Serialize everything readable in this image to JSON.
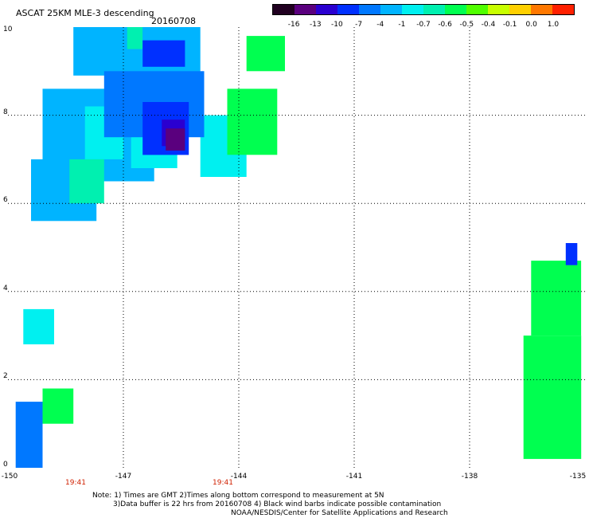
{
  "header": {
    "title": "ASCAT 25KM MLE-3 descending",
    "date": "20160708"
  },
  "colorbar": {
    "labels": [
      "-16",
      "-13",
      "-10",
      "-7",
      "-4",
      "-1",
      "-0.7",
      "-0.6",
      "-0.5",
      "-0.4",
      "-0.1",
      "0.0",
      "1.0"
    ],
    "colors": [
      "#200020",
      "#5a007e",
      "#2a00d0",
      "#0030ff",
      "#0078ff",
      "#00b4ff",
      "#00f0f0",
      "#00f0b0",
      "#00ff50",
      "#50ff00",
      "#c8ff00",
      "#ffd000",
      "#ff7800",
      "#ff2000"
    ]
  },
  "axes": {
    "y_ticks": [
      "0",
      "2",
      "4",
      "6",
      "8",
      "10"
    ],
    "x_ticks": [
      "-150",
      "-147",
      "-144",
      "-141",
      "-138",
      "-135"
    ],
    "time_labels": [
      "19:41",
      "19:41"
    ]
  },
  "notes": {
    "line1": "Note: 1) Times are GMT 2)Times along bottom correspond to measurement at 5N",
    "line2": "3)Data buffer is 22 hrs from 20160708 4) Black wind barbs indicate possible contamination",
    "line3": "NOAA/NESDIS/Center for Satellite Applications and Research"
  },
  "map_data": {
    "lon_range": [
      -150,
      -135
    ],
    "lat_range": [
      0,
      10
    ],
    "swaths": [
      {
        "category": "-1",
        "color": "#00b4ff",
        "cells": [
          [
            -148.3,
            8.9,
            -145.0,
            10.0
          ],
          [
            -149.1,
            6.5,
            -146.2,
            8.6
          ],
          [
            -149.4,
            5.6,
            -147.7,
            7.0
          ]
        ]
      },
      {
        "category": "-0.7",
        "color": "#00f0f0",
        "cells": [
          [
            -148.0,
            7.0,
            -147.0,
            8.2
          ],
          [
            -146.8,
            6.8,
            -145.6,
            7.8
          ],
          [
            -145.0,
            6.6,
            -143.8,
            8.0
          ],
          [
            -149.6,
            2.8,
            -148.8,
            3.6
          ]
        ]
      },
      {
        "category": "-4",
        "color": "#0078ff",
        "cells": [
          [
            -147.5,
            7.5,
            -144.9,
            9.0
          ],
          [
            -149.8,
            0.0,
            -149.1,
            1.5
          ]
        ]
      },
      {
        "category": "-0.6",
        "color": "#00f0b0",
        "cells": [
          [
            -148.4,
            6.0,
            -147.5,
            7.0
          ],
          [
            -146.9,
            9.5,
            -146.5,
            10.0
          ]
        ]
      },
      {
        "category": "-0.5",
        "color": "#00ff50",
        "cells": [
          [
            -143.8,
            9.0,
            -142.8,
            9.8
          ],
          [
            -144.3,
            7.1,
            -143.0,
            8.6
          ],
          [
            -149.1,
            1.0,
            -148.3,
            1.8
          ],
          [
            -136.4,
            3.0,
            -135.1,
            4.7
          ],
          [
            -136.6,
            0.2,
            -135.1,
            3.0
          ]
        ]
      },
      {
        "category": "-7",
        "color": "#0030ff",
        "cells": [
          [
            -146.5,
            9.1,
            -145.4,
            9.7
          ],
          [
            -146.5,
            7.1,
            -145.3,
            8.3
          ],
          [
            -135.5,
            4.6,
            -135.2,
            5.1
          ]
        ]
      },
      {
        "category": "-10",
        "color": "#2a00d0",
        "cells": [
          [
            -146.0,
            7.3,
            -145.4,
            7.9
          ]
        ]
      },
      {
        "category": "-13",
        "color": "#5a007e",
        "cells": [
          [
            -145.9,
            7.2,
            -145.4,
            7.7
          ]
        ]
      }
    ]
  }
}
